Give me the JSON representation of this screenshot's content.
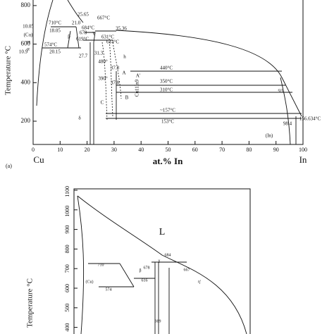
{
  "panel_a": {
    "panel": "(a)",
    "y_label": "Temperature °C",
    "x_label": "at.% In",
    "x_left": "Cu",
    "x_right": "In",
    "xticks": [
      0,
      10,
      20,
      30,
      40,
      50,
      60,
      70,
      80,
      90,
      100
    ],
    "yticks": [
      200,
      400,
      600,
      800
    ],
    "annotations": [
      "710°C",
      "25.65",
      "667°C",
      "21.0",
      "684°C",
      "35.36",
      "10.05",
      "18.05",
      "(Cu)",
      "β",
      "678",
      "γ",
      "631°C",
      "or",
      "619°C",
      "614°C",
      "α",
      "574°C",
      "10.9",
      "20.15",
      "27.7",
      "31.3",
      "h",
      "480°",
      "440°C",
      "37.8",
      "A",
      "A'",
      "390°",
      "37.8",
      "350°C",
      "310°C",
      "B",
      "C",
      "Cu11In9",
      "93",
      "δ",
      "~157°C",
      "153°C",
      "156.634°C",
      "98.4",
      "(In)"
    ]
  },
  "panel_b": {
    "y_label": "Temperature °C",
    "yticks": [
      400,
      500,
      600,
      700,
      800,
      900,
      1000,
      1100
    ],
    "liquid_label": "L",
    "annotations": [
      "710",
      "684",
      "678",
      "γ",
      "β",
      "667",
      "(Cu)",
      "574",
      "616",
      "η'",
      "389"
    ]
  }
}
